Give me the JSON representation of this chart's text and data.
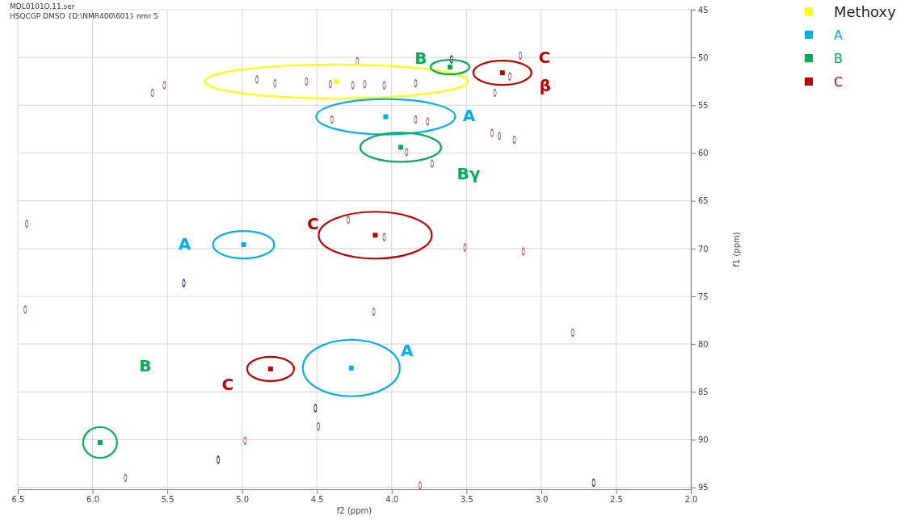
{
  "chart_data": {
    "type": "scatter",
    "xlabel": "f2 (ppm)",
    "ylabel": "f1 (ppm)",
    "xlim": [
      6.5,
      2.0
    ],
    "ylim": [
      95.2,
      45
    ],
    "xticks": [
      {
        "value": 6.5,
        "label": "6.5"
      },
      {
        "value": 6.0,
        "label": "6.0"
      },
      {
        "value": 5.5,
        "label": "5.5"
      },
      {
        "value": 5.0,
        "label": "5.0"
      },
      {
        "value": 4.5,
        "label": "4.5"
      },
      {
        "value": 4.0,
        "label": "4.0"
      },
      {
        "value": 3.5,
        "label": "3.5"
      },
      {
        "value": 3.0,
        "label": "3.0"
      },
      {
        "value": 2.5,
        "label": "2.5"
      },
      {
        "value": 2.0,
        "label": "2.0"
      }
    ],
    "yticks": [
      45,
      50,
      55,
      60,
      65,
      70,
      75,
      80,
      85,
      90,
      95
    ],
    "grid": true,
    "legend": "top right",
    "marker": "circle",
    "series": [
      {
        "color": "#b5555a",
        "x": [
          5.52,
          5.6,
          4.9,
          4.78,
          4.57,
          4.41,
          4.26,
          4.18,
          4.05,
          3.84,
          3.84,
          3.76,
          3.9,
          3.73,
          3.33,
          3.28,
          3.18,
          3.14,
          3.21,
          3.31,
          4.4,
          4.29,
          4.05,
          3.51,
          3.12,
          4.12,
          4.49,
          4.98,
          5.78,
          6.45,
          6.44,
          3.81,
          2.79,
          4.23
        ],
        "values": [
          52.9,
          53.7,
          52.3,
          52.7,
          52.5,
          52.8,
          52.9,
          52.8,
          52.9,
          52.7,
          56.5,
          56.7,
          59.9,
          61.1,
          57.9,
          58.2,
          58.6,
          49.8,
          52.0,
          53.7,
          56.5,
          67.0,
          68.8,
          69.9,
          70.3,
          76.6,
          88.6,
          90.1,
          94.0,
          76.4,
          67.4,
          94.8,
          78.8,
          50.4
        ]
      },
      {
        "color": "#1a1aa0",
        "x": [
          5.39,
          4.51,
          5.16,
          2.65,
          3.6
        ],
        "values": [
          73.6,
          86.7,
          92.1,
          94.5,
          50.2
        ]
      },
      {
        "name": "Methoxy",
        "color": "#ffff00",
        "marker": "square",
        "x": [
          4.37
        ],
        "values": [
          52.5
        ]
      },
      {
        "name": "A",
        "color": "#00b0f0",
        "marker": "square",
        "x": [
          4.04,
          4.99,
          4.27
        ],
        "values": [
          56.2,
          69.6,
          82.5
        ]
      },
      {
        "name": "B",
        "color": "#00b050",
        "marker": "square",
        "x": [
          3.61,
          3.94,
          5.95
        ],
        "values": [
          51.0,
          59.4,
          90.3
        ]
      },
      {
        "name": "C",
        "color": "#c00000",
        "marker": "square",
        "x": [
          3.26,
          4.11,
          4.81
        ],
        "values": [
          51.6,
          68.6,
          82.6
        ]
      }
    ],
    "annotations": [
      "MDL0101O.11.ser",
      "HSQCGP DMSO {D:\\NMR400\\601} nmr 5",
      "B",
      "C",
      "β",
      "A",
      "Bγ",
      "C",
      "A",
      "A",
      "B",
      "C"
    ]
  }
}
